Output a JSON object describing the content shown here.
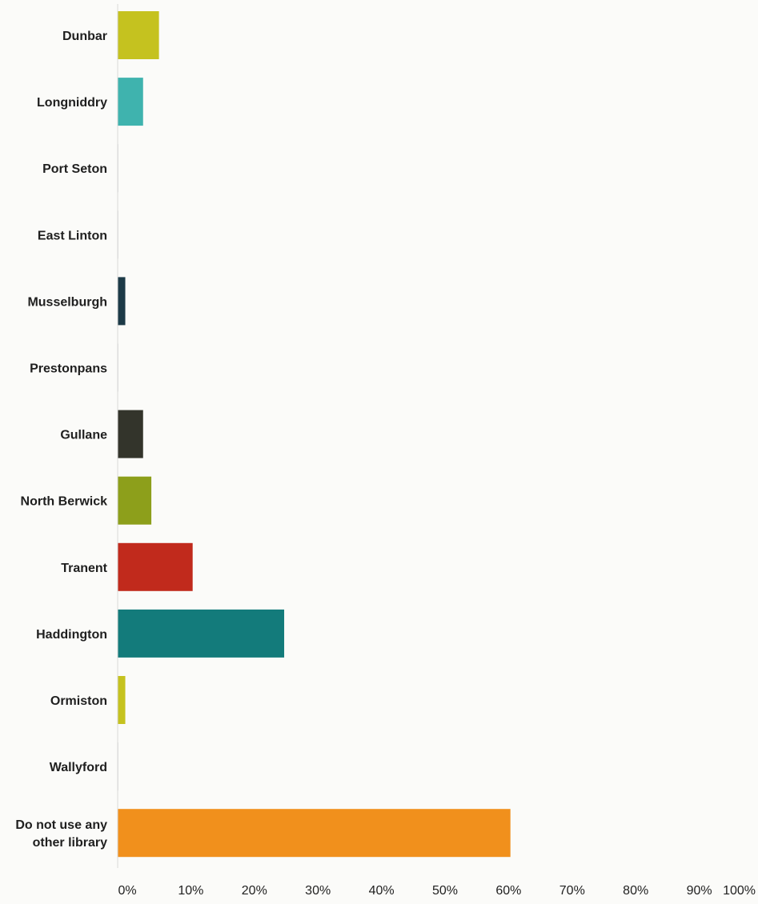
{
  "chart_data": {
    "type": "bar",
    "orientation": "horizontal",
    "title": "",
    "xlabel": "",
    "ylabel": "",
    "categories": [
      [
        "Dunbar"
      ],
      [
        "Longniddry"
      ],
      [
        "Port Seton"
      ],
      [
        "East Linton"
      ],
      [
        "Musselburgh"
      ],
      [
        "Prestonpans"
      ],
      [
        "Gullane"
      ],
      [
        "North Berwick"
      ],
      [
        "Tranent"
      ],
      [
        "Haddington"
      ],
      [
        "Ormiston"
      ],
      [
        "Wallyford"
      ],
      [
        "Do not use any",
        "other library"
      ]
    ],
    "values": [
      6.5,
      4.0,
      0,
      0,
      1.2,
      0,
      4.0,
      5.3,
      11.8,
      26.2,
      1.2,
      0,
      61.8
    ],
    "colors": [
      "#c5c21f",
      "#3fb3ae",
      "#c9c9c9",
      "#c9c9c9",
      "#1c3a47",
      "#c9c9c9",
      "#33342b",
      "#8d9f1b",
      "#c12a1c",
      "#137b7b",
      "#c5c21f",
      "#c9c9c9",
      "#f1901c"
    ],
    "xlim": [
      0,
      100
    ],
    "xticks": [
      "0%",
      "10%",
      "20%",
      "30%",
      "40%",
      "50%",
      "60%",
      "70%",
      "80%",
      "90%",
      "100%"
    ],
    "grid": false,
    "legend": false
  }
}
